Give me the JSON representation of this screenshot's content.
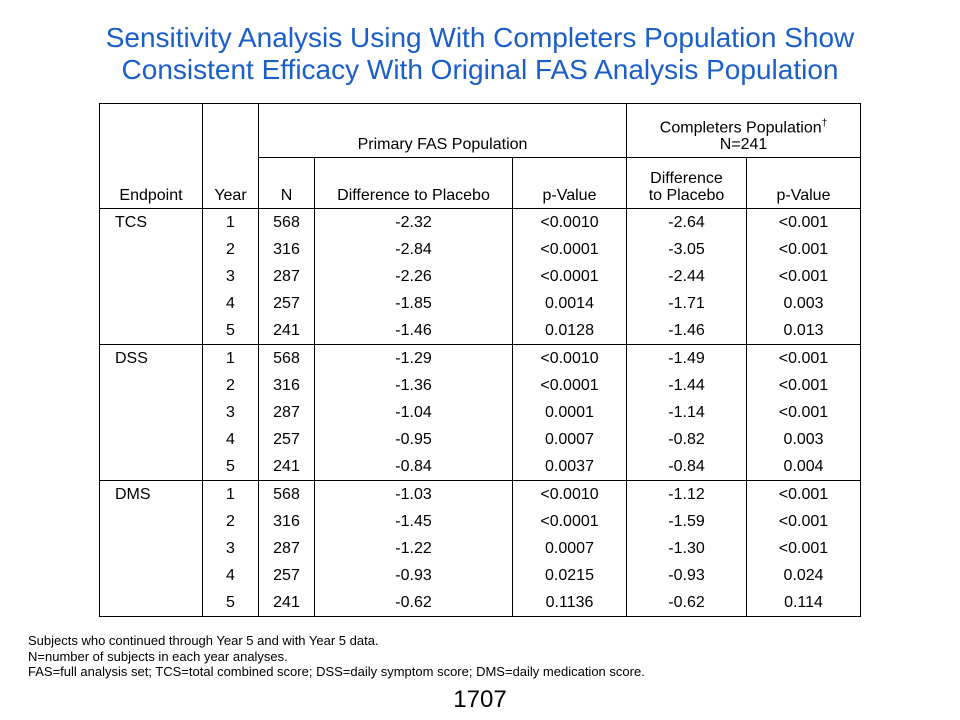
{
  "title": {
    "line1": "Sensitivity Analysis Using With Completers Population Show",
    "line2": "Consistent Efficacy With Original FAS Analysis Population"
  },
  "table": {
    "group_headers": {
      "primary": "Primary FAS Population",
      "completers_line1": "Completers Population",
      "completers_mark": "†",
      "completers_line2": "N=241"
    },
    "columns": {
      "endpoint": "Endpoint",
      "year": "Year",
      "n": "N",
      "diff_primary": "Difference to Placebo",
      "p_primary": "p-Value",
      "diff_completers": "Difference to Placebo",
      "p_completers": "p-Value"
    },
    "groups": [
      {
        "endpoint": "TCS",
        "rows": [
          {
            "year": "1",
            "n": "568",
            "diff": "-2.32",
            "p": "<0.0010",
            "cdiff": "-2.64",
            "cp": "<0.001"
          },
          {
            "year": "2",
            "n": "316",
            "diff": "-2.84",
            "p": "<0.0001",
            "cdiff": "-3.05",
            "cp": "<0.001"
          },
          {
            "year": "3",
            "n": "287",
            "diff": "-2.26",
            "p": "<0.0001",
            "cdiff": "-2.44",
            "cp": "<0.001"
          },
          {
            "year": "4",
            "n": "257",
            "diff": "-1.85",
            "p": "0.0014",
            "cdiff": "-1.71",
            "cp": "0.003"
          },
          {
            "year": "5",
            "n": "241",
            "diff": "-1.46",
            "p": "0.0128",
            "cdiff": "-1.46",
            "cp": "0.013"
          }
        ]
      },
      {
        "endpoint": "DSS",
        "rows": [
          {
            "year": "1",
            "n": "568",
            "diff": "-1.29",
            "p": "<0.0010",
            "cdiff": "-1.49",
            "cp": "<0.001"
          },
          {
            "year": "2",
            "n": "316",
            "diff": "-1.36",
            "p": "<0.0001",
            "cdiff": "-1.44",
            "cp": "<0.001"
          },
          {
            "year": "3",
            "n": "287",
            "diff": "-1.04",
            "p": "0.0001",
            "cdiff": "-1.14",
            "cp": "<0.001"
          },
          {
            "year": "4",
            "n": "257",
            "diff": "-0.95",
            "p": "0.0007",
            "cdiff": "-0.82",
            "cp": "0.003"
          },
          {
            "year": "5",
            "n": "241",
            "diff": "-0.84",
            "p": "0.0037",
            "cdiff": "-0.84",
            "cp": "0.004"
          }
        ]
      },
      {
        "endpoint": "DMS",
        "rows": [
          {
            "year": "1",
            "n": "568",
            "diff": "-1.03",
            "p": "<0.0010",
            "cdiff": "-1.12",
            "cp": "<0.001"
          },
          {
            "year": "2",
            "n": "316",
            "diff": "-1.45",
            "p": "<0.0001",
            "cdiff": "-1.59",
            "cp": "<0.001"
          },
          {
            "year": "3",
            "n": "287",
            "diff": "-1.22",
            "p": "0.0007",
            "cdiff": "-1.30",
            "cp": "<0.001"
          },
          {
            "year": "4",
            "n": "257",
            "diff": "-0.93",
            "p": "0.0215",
            "cdiff": "-0.93",
            "cp": "0.024"
          },
          {
            "year": "5",
            "n": "241",
            "diff": "-0.62",
            "p": "0.1136",
            "cdiff": "-0.62",
            "cp": "0.114"
          }
        ]
      }
    ]
  },
  "footnotes": [
    "Subjects who continued through Year 5 and with Year 5 data.",
    "N=number of subjects in each year analyses.",
    "FAS=full analysis set; TCS=total combined score; DSS=daily symptom score; DMS=daily medication score."
  ],
  "page_number": "1707",
  "colors": {
    "title": "#1a5ec9"
  }
}
